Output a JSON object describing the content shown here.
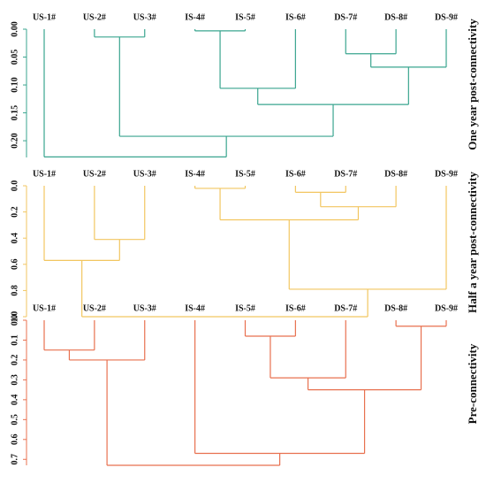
{
  "chart_data": [
    {
      "type": "dendrogram",
      "title": "One year post-connectivity",
      "color": "#3aa58f",
      "leaves": [
        "US-1#",
        "US-2#",
        "US-3#",
        "IS-4#",
        "IS-5#",
        "IS-6#",
        "DS-7#",
        "DS-8#",
        "DS-9#"
      ],
      "merges": [
        [
          1,
          2,
          0.014
        ],
        [
          3,
          4,
          0.003
        ],
        [
          10,
          5,
          0.106
        ],
        [
          6,
          7,
          0.044
        ],
        [
          12,
          8,
          0.068
        ],
        [
          11,
          13,
          0.135
        ],
        [
          9,
          14,
          0.192
        ],
        [
          0,
          15,
          0.229
        ]
      ],
      "ylim": [
        0,
        0.23
      ],
      "yticks": [
        {
          "value": 0,
          "label": "0.00"
        },
        0.05,
        {
          "value": 0.1,
          "label": "0.10"
        },
        0.15,
        {
          "value": 0.2,
          "label": "0.20"
        }
      ]
    },
    {
      "type": "dendrogram",
      "title": "Half a year post-connectivity",
      "color": "#f2c660",
      "leaves": [
        "US-1#",
        "US-2#",
        "US-3#",
        "IS-4#",
        "IS-5#",
        "IS-6#",
        "DS-7#",
        "DS-8#",
        "DS-9#"
      ],
      "merges": [
        [
          3,
          4,
          0.02
        ],
        [
          5,
          6,
          0.05
        ],
        [
          10,
          7,
          0.16
        ],
        [
          9,
          11,
          0.26
        ],
        [
          1,
          2,
          0.41
        ],
        [
          0,
          13,
          0.57
        ],
        [
          12,
          8,
          0.79
        ],
        [
          14,
          15,
          1.0
        ]
      ],
      "ylim": [
        0,
        1
      ],
      "yticks": [
        {
          "value": 0,
          "label": "0.0"
        },
        0.2,
        0.4,
        0.6,
        0.8,
        {
          "value": 1,
          "label": "1.0"
        }
      ]
    },
    {
      "type": "dendrogram",
      "title": "Pre-connectivity",
      "color": "#e8704f",
      "leaves": [
        "US-1#",
        "US-2#",
        "US-3#",
        "IS-4#",
        "IS-5#",
        "IS-6#",
        "DS-7#",
        "DS-8#",
        "DS-9#"
      ],
      "merges": [
        [
          7,
          8,
          0.03
        ],
        [
          4,
          5,
          0.08
        ],
        [
          0,
          1,
          0.15
        ],
        [
          11,
          2,
          0.2
        ],
        [
          10,
          6,
          0.29
        ],
        [
          13,
          9,
          0.35
        ],
        [
          3,
          14,
          0.67
        ],
        [
          12,
          15,
          0.73
        ]
      ],
      "ylim": [
        0,
        0.73
      ],
      "yticks": [
        {
          "value": 0,
          "label": "0.0"
        },
        0.1,
        0.2,
        0.3,
        0.4,
        0.5,
        0.6,
        0.7
      ]
    }
  ]
}
